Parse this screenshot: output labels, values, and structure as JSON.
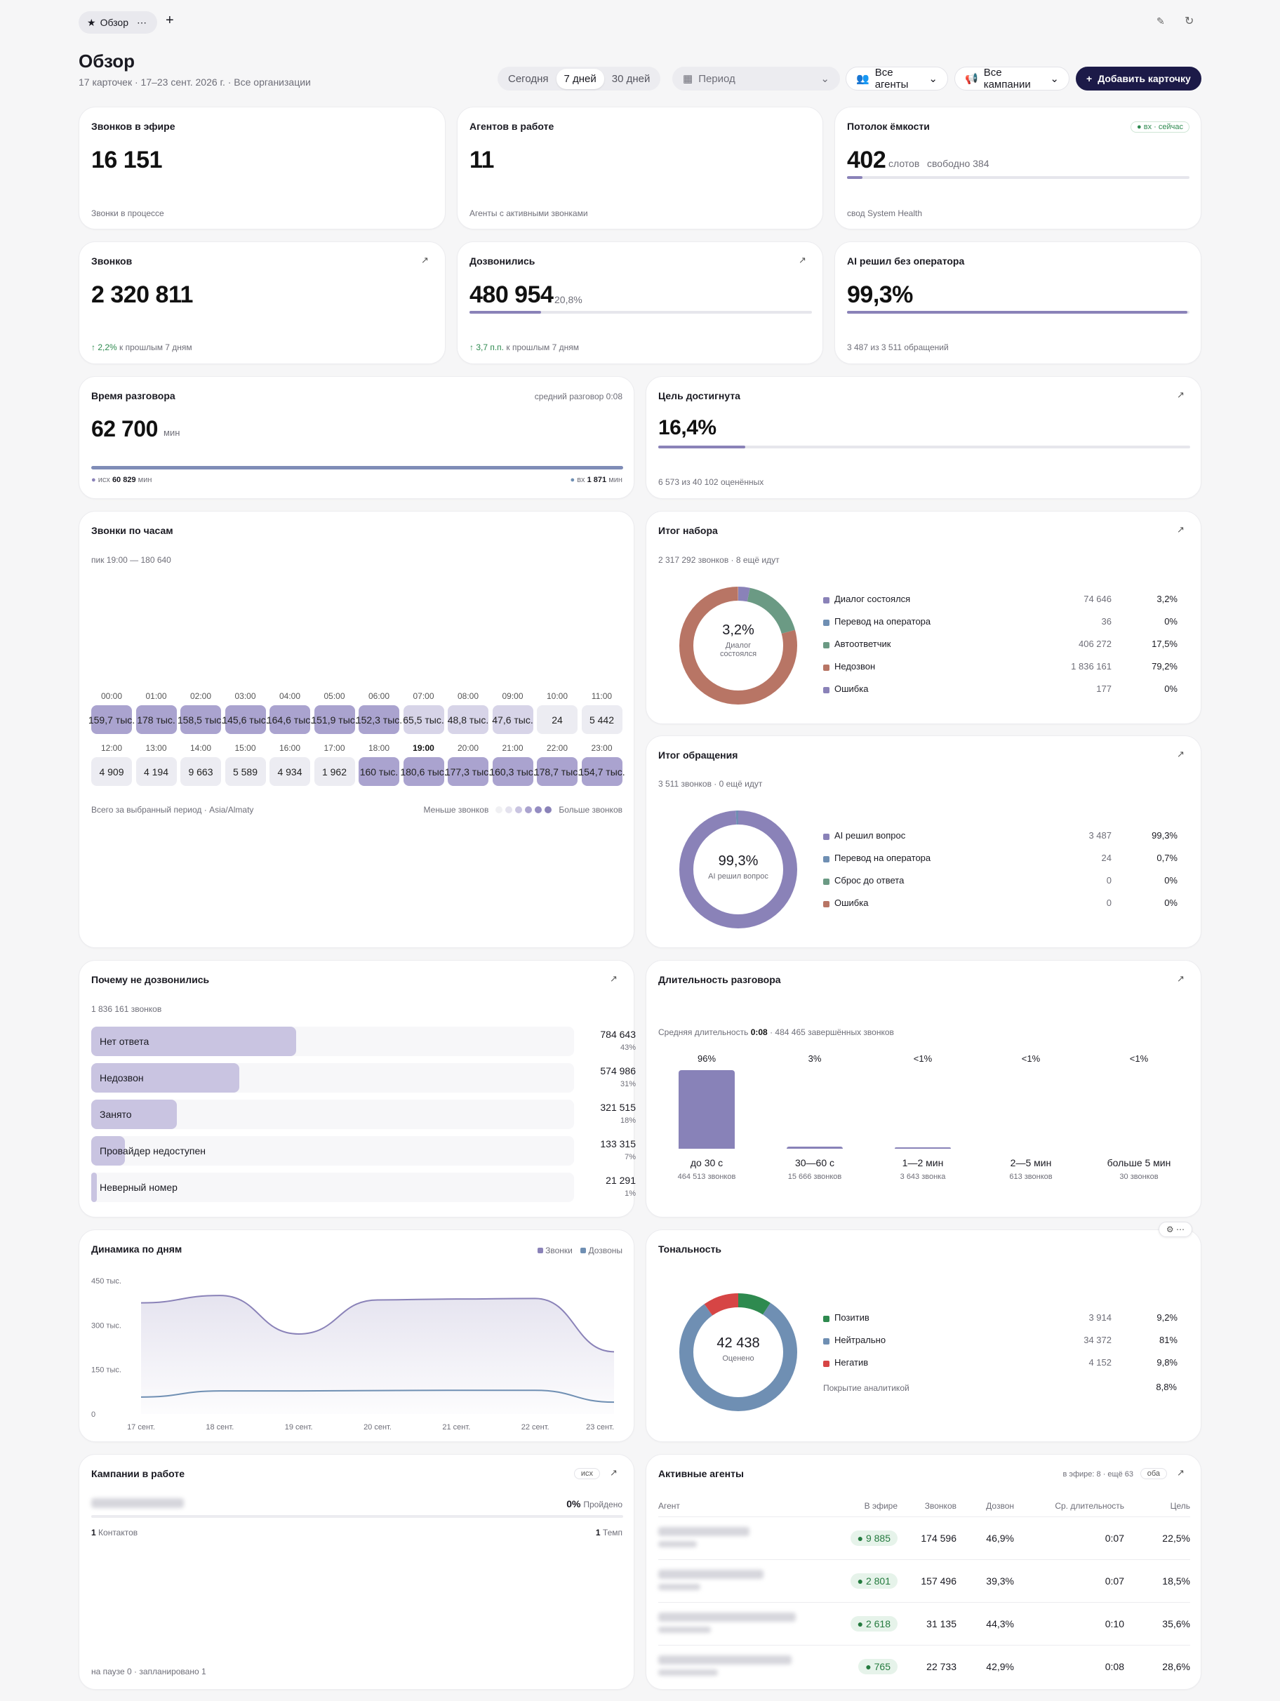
{
  "tab": {
    "label": "Обзор"
  },
  "page": {
    "title": "Обзор",
    "subtitle": "17 карточек · 17–23 сент. 2026 г. · Все организации"
  },
  "toolbar": {
    "ranges": [
      "Сегодня",
      "7 дней",
      "30 дней"
    ],
    "period_placeholder": "Период",
    "agents": "Все агенты",
    "campaigns": "Все кампании",
    "add": "Добавить карточку"
  },
  "kpi": {
    "live": {
      "title": "Звонков в эфире",
      "value": "16 151",
      "note": "Звонки в процессе"
    },
    "agents": {
      "title": "Агентов в работе",
      "value": "11",
      "note": "Агенты с активными звонками"
    },
    "cap": {
      "title": "Потолок ёмкости",
      "badge": "вх · сейчас",
      "value": "402",
      "unit": "слотов",
      "free": "свободно 384",
      "note": "свод System Health",
      "fill": 0.045
    },
    "calls": {
      "title": "Звонков",
      "value": "2 320 811",
      "delta": "↑ 2,2%",
      "delta_note": "к прошлым 7 дням"
    },
    "reached": {
      "title": "Дозвонились",
      "value": "480 954",
      "pct": "20,8%",
      "delta": "↑ 3,7 п.п.",
      "delta_note": "к прошлым 7 дням",
      "fill": 0.208
    },
    "ai": {
      "title": "AI решил без оператора",
      "value": "99,3%",
      "note": "3 487 из 3 511 обращений",
      "fill": 0.993
    }
  },
  "talk": {
    "title": "Время разговора",
    "avg": "средний разговор 0:08",
    "value": "62 700",
    "unit": "мин",
    "out_label": "исх",
    "out_value": "60 829",
    "out_unit": "мин",
    "in_label": "вх",
    "in_value": "1 871",
    "in_unit": "мин"
  },
  "goal": {
    "title": "Цель достигнута",
    "value": "16,4%",
    "note": "6 573 из 40 102 оценённых",
    "fill": 0.164
  },
  "hours": {
    "title": "Звонки по часам",
    "peak": "пик 19:00 — 180 640",
    "footer": "Всего за выбранный период · Asia/Almaty",
    "less": "Меньше звонков",
    "more": "Больше звонков",
    "cells": [
      {
        "h": "00:00",
        "v": "159,7 тыс.",
        "lvl": 3
      },
      {
        "h": "01:00",
        "v": "178 тыс.",
        "lvl": 3
      },
      {
        "h": "02:00",
        "v": "158,5 тыс.",
        "lvl": 3
      },
      {
        "h": "03:00",
        "v": "145,6 тыс.",
        "lvl": 3
      },
      {
        "h": "04:00",
        "v": "164,6 тыс.",
        "lvl": 3
      },
      {
        "h": "05:00",
        "v": "151,9 тыс.",
        "lvl": 3
      },
      {
        "h": "06:00",
        "v": "152,3 тыс.",
        "lvl": 3
      },
      {
        "h": "07:00",
        "v": "65,5 тыс.",
        "lvl": 1
      },
      {
        "h": "08:00",
        "v": "48,8 тыс.",
        "lvl": 1
      },
      {
        "h": "09:00",
        "v": "47,6 тыс.",
        "lvl": 1
      },
      {
        "h": "10:00",
        "v": "24",
        "lvl": 0
      },
      {
        "h": "11:00",
        "v": "5 442",
        "lvl": 0
      },
      {
        "h": "12:00",
        "v": "4 909",
        "lvl": 0
      },
      {
        "h": "13:00",
        "v": "4 194",
        "lvl": 0
      },
      {
        "h": "14:00",
        "v": "9 663",
        "lvl": 0
      },
      {
        "h": "15:00",
        "v": "5 589",
        "lvl": 0
      },
      {
        "h": "16:00",
        "v": "4 934",
        "lvl": 0
      },
      {
        "h": "17:00",
        "v": "1 962",
        "lvl": 0
      },
      {
        "h": "18:00",
        "v": "160 тыс.",
        "lvl": 3
      },
      {
        "h": "19:00",
        "v": "180,6 тыс.",
        "lvl": 3
      },
      {
        "h": "20:00",
        "v": "177,3 тыс.",
        "lvl": 3
      },
      {
        "h": "21:00",
        "v": "160,3 тыс.",
        "lvl": 3
      },
      {
        "h": "22:00",
        "v": "178,7 тыс.",
        "lvl": 3
      },
      {
        "h": "23:00",
        "v": "154,7 тыс.",
        "lvl": 3
      }
    ]
  },
  "dial": {
    "title": "Итог набора",
    "sub": "2 317 292 звонков · 8 ещё идут",
    "center_value": "3,2%",
    "center_label_1": "Диалог",
    "center_label_2": "состоялся",
    "items": [
      {
        "name": "Диалог состоялся",
        "count": "74 646",
        "pct": "3,2%",
        "color": "#8a82b8",
        "share": 0.032
      },
      {
        "name": "Перевод на оператора",
        "count": "36",
        "pct": "0%",
        "color": "#6f8fb3",
        "share": 0.0
      },
      {
        "name": "Автоответчик",
        "count": "406 272",
        "pct": "17,5%",
        "color": "#6b9a84",
        "share": 0.175
      },
      {
        "name": "Недозвон",
        "count": "1 836 161",
        "pct": "79,2%",
        "color": "#b87565",
        "share": 0.792
      },
      {
        "name": "Ошибка",
        "count": "177",
        "pct": "0%",
        "color": "#8a82b8",
        "share": 0.0
      }
    ]
  },
  "appeal": {
    "title": "Итог обращения",
    "sub": "3 511 звонков · 0 ещё идут",
    "center_value": "99,3%",
    "center_label": "AI решил вопрос",
    "items": [
      {
        "name": "AI решил вопрос",
        "count": "3 487",
        "pct": "99,3%",
        "color": "#8a82b8",
        "share": 0.993
      },
      {
        "name": "Перевод на оператора",
        "count": "24",
        "pct": "0,7%",
        "color": "#6f8fb3",
        "share": 0.007
      },
      {
        "name": "Сброс до ответа",
        "count": "0",
        "pct": "0%",
        "color": "#6b9a84",
        "share": 0
      },
      {
        "name": "Ошибка",
        "count": "0",
        "pct": "0%",
        "color": "#b87565",
        "share": 0
      }
    ]
  },
  "why": {
    "title": "Почему не дозвонились",
    "sub": "1 836 161 звонков",
    "items": [
      {
        "name": "Нет ответа",
        "value": "784 643",
        "pct": "43%",
        "share": 0.43
      },
      {
        "name": "Недозвон",
        "value": "574 986",
        "pct": "31%",
        "share": 0.31
      },
      {
        "name": "Занято",
        "value": "321 515",
        "pct": "18%",
        "share": 0.18
      },
      {
        "name": "Провайдер недоступен",
        "value": "133 315",
        "pct": "7%",
        "share": 0.07
      },
      {
        "name": "Неверный номер",
        "value": "21 291",
        "pct": "1%",
        "share": 0.01
      }
    ]
  },
  "dur": {
    "title": "Длительность разговора",
    "avg_prefix": "Средняя длительность",
    "avg": "0:08",
    "avg_suffix": "· 484 465 завершённых звонков",
    "bins": [
      {
        "pct": "96%",
        "label": "до 30 с",
        "count": "464 513 звонков",
        "share": 0.96
      },
      {
        "pct": "3%",
        "label": "30—60 с",
        "count": "15 666 звонков",
        "share": 0.03
      },
      {
        "pct": "<1%",
        "label": "1—2 мин",
        "count": "3 643 звонка",
        "share": 0.008
      },
      {
        "pct": "<1%",
        "label": "2—5 мин",
        "count": "613 звонков",
        "share": 0.0
      },
      {
        "pct": "<1%",
        "label": "больше 5 мин",
        "count": "30 звонков",
        "share": 0.0
      }
    ]
  },
  "chart_data": {
    "type": "area",
    "title": "Динамика по дням",
    "x": [
      "17 сент.",
      "18 сент.",
      "19 сент.",
      "20 сент.",
      "21 сент.",
      "22 сент.",
      "23 сент."
    ],
    "yticks": [
      "450 тыс.",
      "300 тыс.",
      "150 тыс.",
      "0"
    ],
    "ylim": [
      0,
      450000
    ],
    "series": [
      {
        "name": "Звонки",
        "color": "#8a82b8",
        "values": [
          375000,
          400000,
          270000,
          385000,
          388000,
          390000,
          210000
        ]
      },
      {
        "name": "Дозвоны",
        "color": "#6f8fb3",
        "values": [
          57000,
          78000,
          78000,
          79000,
          80000,
          80000,
          40000
        ]
      }
    ]
  },
  "tone": {
    "title": "Тональность",
    "center_value": "42 438",
    "center_label": "Оценено",
    "items": [
      {
        "name": "Позитив",
        "count": "3 914",
        "pct": "9,2%",
        "color": "#2e8a4f",
        "share": 0.092
      },
      {
        "name": "Нейтрально",
        "count": "34 372",
        "pct": "81%",
        "color": "#6f8fb3",
        "share": 0.81
      },
      {
        "name": "Негатив",
        "count": "4 152",
        "pct": "9,8%",
        "color": "#d64545",
        "share": 0.098
      }
    ],
    "coverage_label": "Покрытие аналитикой",
    "coverage": "8,8%"
  },
  "camps": {
    "title": "Кампании в работе",
    "tag": "исх",
    "pct": "0%",
    "pct_label": "Пройдено",
    "contacts_n": "1",
    "contacts": "Контактов",
    "temp_n": "1",
    "temp": "Темп",
    "footer": "на паузе 0 · запланировано 1"
  },
  "agents": {
    "title": "Активные агенты",
    "meta": "в эфире: 8 · ещё 63",
    "tag": "оба",
    "cols": [
      "Агент",
      "В эфире",
      "Звонков",
      "Дозвон",
      "Ср. длительность",
      "Цель"
    ],
    "rows": [
      {
        "live": "9 885",
        "calls": "174 596",
        "reach": "46,9%",
        "avg": "0:07",
        "goal": "22,5%"
      },
      {
        "live": "2 801",
        "calls": "157 496",
        "reach": "39,3%",
        "avg": "0:07",
        "goal": "18,5%"
      },
      {
        "live": "2 618",
        "calls": "31 135",
        "reach": "44,3%",
        "avg": "0:10",
        "goal": "35,6%"
      },
      {
        "live": "765",
        "calls": "22 733",
        "reach": "42,9%",
        "avg": "0:08",
        "goal": "28,6%"
      }
    ]
  }
}
